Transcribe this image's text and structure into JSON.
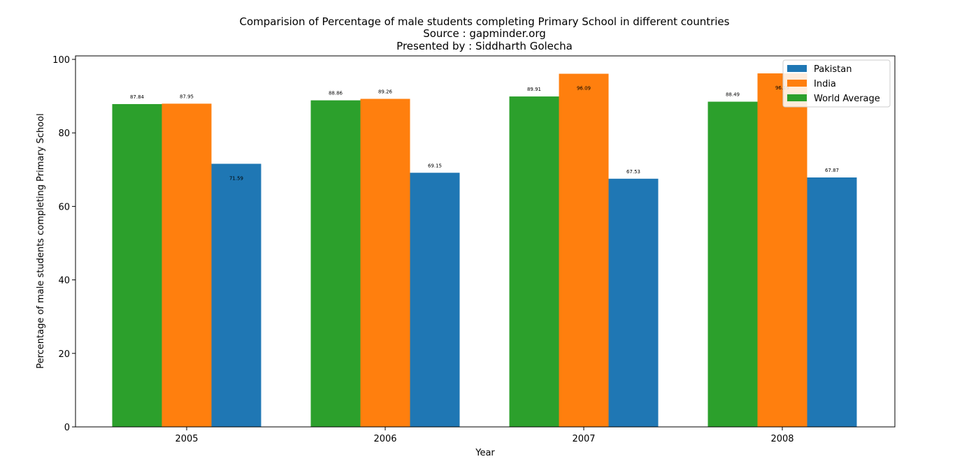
{
  "chart_data": {
    "type": "bar",
    "title_lines": [
      "Comparision of Percentage of male students completing Primary School in different countries",
      "Source : gapminder.org",
      "Presented by : Siddharth Golecha"
    ],
    "xlabel": "Year",
    "ylabel": "Percentage of male students completing Primary School",
    "categories": [
      "2005",
      "2006",
      "2007",
      "2008"
    ],
    "ylim": [
      0,
      100
    ],
    "yticks": [
      "0",
      "20",
      "40",
      "60",
      "80",
      "100"
    ],
    "grid": false,
    "legend_position": "top-right",
    "draw_order": [
      "World Average",
      "India",
      "Pakistan"
    ],
    "series": [
      {
        "name": "Pakistan",
        "color": "#1f77b4",
        "values": [
          71.59,
          69.15,
          67.53,
          67.87
        ],
        "labels": [
          "71.59",
          "69.15",
          "67.53",
          "67.87"
        ]
      },
      {
        "name": "India",
        "color": "#ff7f0e",
        "values": [
          87.95,
          89.26,
          96.09,
          96.19
        ],
        "labels": [
          "87.95",
          "89.26",
          "96.09",
          "96.19"
        ]
      },
      {
        "name": "World Average",
        "color": "#2ca02c",
        "values": [
          87.84,
          88.86,
          89.91,
          88.49
        ],
        "labels": [
          "87.84",
          "88.86",
          "89.91",
          "88.49"
        ]
      }
    ]
  }
}
